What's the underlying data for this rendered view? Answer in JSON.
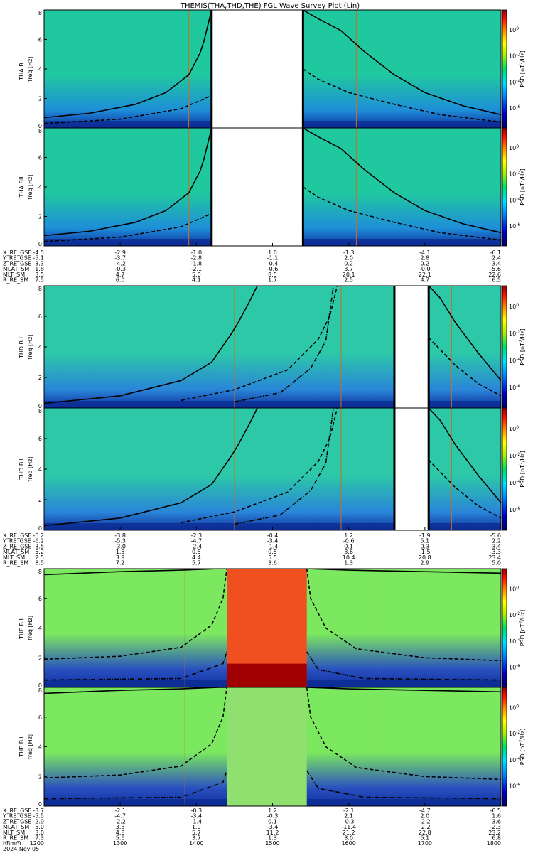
{
  "title": "THEMIS(THA,THD,THE) FGL Wave Survey Plot (Lin)",
  "cbar_label_parts": [
    "PSD [nT",
    "2",
    "/Hz]"
  ],
  "cbar_ticks": [
    {
      "label": "10",
      "exp": "0"
    },
    {
      "label": "10",
      "exp": "-2"
    },
    {
      "label": "10",
      "exp": "-4"
    },
    {
      "label": "10",
      "exp": "-6"
    }
  ],
  "freq_unit_label": "freq [Hz]",
  "chart_data": [
    {
      "type": "heatmap",
      "probe": "THA",
      "panels": [
        {
          "name": "THA B.L",
          "ylabel": "THA B.L"
        },
        {
          "name": "THA Bll",
          "ylabel": "THA Bll"
        }
      ],
      "yticks": [
        "0",
        "2",
        "4",
        "6",
        "8"
      ],
      "ylim": [
        0,
        8
      ],
      "xlim": [
        1200,
        1800
      ],
      "data_gaps": [
        [
          1420,
          1540
        ]
      ],
      "boundaries": [
        1390,
        1610
      ],
      "fce_curve": {
        "t": [
          1200,
          1260,
          1320,
          1360,
          1390,
          1405,
          1410,
          1420
        ],
        "f": [
          0.7,
          1.0,
          1.6,
          2.4,
          3.6,
          5.1,
          5.9,
          8
        ]
      },
      "fce_curve_after": {
        "t": [
          1540,
          1560,
          1590,
          1620,
          1660,
          1700,
          1750,
          1800
        ],
        "f": [
          8,
          7.4,
          6.6,
          5.2,
          3.6,
          2.4,
          1.5,
          0.9
        ]
      },
      "dash_curve": {
        "t": [
          1200,
          1300,
          1380,
          1420
        ],
        "f": [
          0.3,
          0.6,
          1.3,
          2.2
        ]
      },
      "dash_curve_after": {
        "t": [
          1540,
          1560,
          1600,
          1660,
          1720,
          1800
        ],
        "f": [
          4.0,
          3.3,
          2.4,
          1.6,
          0.9,
          0.4
        ]
      },
      "ephem": {
        "labels": [
          "X_RE_GSE",
          "Y_RE_GSE",
          "Z_RE_GSE",
          "MLAT_SM",
          "MLT_SM",
          "R_RE_SM"
        ],
        "columns": [
          [
            "-4.5",
            "-2.9",
            "-1.0",
            "1.0",
            "-1.3",
            "-4.1",
            "-6.1"
          ],
          [
            "-5.1",
            "-3.7",
            "-2.8",
            "-1.1",
            "2.0",
            "2.8",
            "2.4"
          ],
          [
            "-3.3",
            "-4.2",
            "-1.8",
            "-0.4",
            "0.2",
            "0.2",
            "-3.4"
          ],
          [
            "1.8",
            "-0.3",
            "-2.1",
            "-0.6",
            "3.7",
            "-0.0",
            "-5.6"
          ],
          [
            "3.5",
            "4.7",
            "5.0",
            "8.5",
            "20.1",
            "22.1",
            "22.6"
          ],
          [
            "7.5",
            "6.0",
            "4.1",
            "1.7",
            "2.5",
            "4.7",
            "6.5"
          ]
        ]
      }
    },
    {
      "type": "heatmap",
      "probe": "THD",
      "panels": [
        {
          "name": "THD B.L",
          "ylabel": "THD B.L"
        },
        {
          "name": "THD Bll",
          "ylabel": "THD Bll"
        }
      ],
      "yticks": [
        "0",
        "2",
        "4",
        "6",
        "8"
      ],
      "ylim": [
        0,
        8
      ],
      "xlim": [
        1200,
        1800
      ],
      "data_gaps": [
        [
          1660,
          1705
        ]
      ],
      "boundaries": [
        1450,
        1590,
        1735
      ],
      "fce_curve": {
        "t": [
          1200,
          1300,
          1380,
          1420,
          1445,
          1455,
          1470,
          1480
        ],
        "f": [
          0.3,
          0.8,
          1.8,
          3.0,
          4.8,
          5.6,
          7.0,
          8
        ]
      },
      "fce_curve_after": {
        "t": [
          1705,
          1720,
          1740,
          1770,
          1800
        ],
        "f": [
          8,
          7.2,
          5.6,
          3.6,
          1.8
        ]
      },
      "dash_curve": {
        "t": [
          1380,
          1450,
          1520,
          1560,
          1575,
          1585
        ],
        "f": [
          0.5,
          1.2,
          2.5,
          4.5,
          6.0,
          8
        ]
      },
      "dash_curve_after": {
        "t": [
          1705,
          1740,
          1770,
          1800
        ],
        "f": [
          4.6,
          2.8,
          1.6,
          0.8
        ]
      },
      "dashdot_curve": {
        "t": [
          1450,
          1510,
          1550,
          1570,
          1580
        ],
        "f": [
          0.4,
          1.0,
          2.6,
          4.4,
          8
        ]
      },
      "ephem": {
        "labels": [
          "X_RE_GSE",
          "Y_RE_GSE",
          "Z_RE_GSE",
          "MLAT_SM",
          "MLT_SM",
          "R_RE_SM"
        ],
        "columns": [
          [
            "-6.2",
            "-3.8",
            "-2.3",
            "-0.4",
            "1.2",
            "-1.9",
            "-5.6"
          ],
          [
            "-6.2",
            "-5.3",
            "-4.7",
            "-3.4",
            "-0.6",
            "5.1",
            "2.2"
          ],
          [
            "-3.5",
            "-3.0",
            "-2.4",
            "-1.4",
            "0.1",
            "0.3",
            "-3.4"
          ],
          [
            "5.2",
            "1.5",
            "0.5",
            "0.5",
            "3.6",
            "-1.5",
            "-3.3"
          ],
          [
            "2.5",
            "3.9",
            "4.4",
            "5.5",
            "10.4",
            "20.8",
            "23.4"
          ],
          [
            "8.5",
            "7.2",
            "5.7",
            "3.6",
            "1.3",
            "2.9",
            "5.0"
          ]
        ]
      }
    },
    {
      "type": "heatmap",
      "probe": "THE",
      "panels": [
        {
          "name": "THE B.L",
          "ylabel": "THE B.L"
        },
        {
          "name": "THE Bll",
          "ylabel": "THE Bll"
        }
      ],
      "yticks": [
        "0",
        "2",
        "4",
        "6",
        "8"
      ],
      "ylim": [
        0,
        8
      ],
      "xlim": [
        1200,
        1800
      ],
      "high_power_interval": [
        1440,
        1545
      ],
      "boundaries": [
        1385,
        1640
      ],
      "fce_curve": {
        "t": [
          1200,
          1300,
          1380,
          1430,
          1440
        ],
        "f": [
          7.6,
          7.8,
          7.9,
          8,
          8
        ]
      },
      "fce_curve_after": {
        "t": [
          1545,
          1600,
          1700,
          1800
        ],
        "f": [
          8,
          7.9,
          7.8,
          7.7
        ]
      },
      "dash_curve": {
        "t": [
          1200,
          1300,
          1380,
          1420,
          1435,
          1440
        ],
        "f": [
          1.9,
          2.1,
          2.7,
          4.2,
          6.0,
          8
        ]
      },
      "dash_curve_after": {
        "t": [
          1545,
          1550,
          1570,
          1610,
          1700,
          1800
        ],
        "f": [
          8,
          6.0,
          4.0,
          2.6,
          2.0,
          1.8
        ]
      },
      "dashdot_curve": {
        "t": [
          1200,
          1380,
          1435,
          1440
        ],
        "f": [
          0.5,
          0.6,
          1.6,
          2.4
        ]
      },
      "dashdot_curve_after": {
        "t": [
          1545,
          1560,
          1620,
          1800
        ],
        "f": [
          2.4,
          1.2,
          0.6,
          0.5
        ]
      },
      "ephem": {
        "labels": [
          "X_RE_GSE",
          "Y_RE_GSE",
          "Z_RE_GSE",
          "MLAT_SM",
          "MLT_SM",
          "R_RE_SM",
          "hhmm"
        ],
        "columns": [
          [
            "-3.7",
            "-2.1",
            "-0.3",
            "1.2",
            "-2.1",
            "-4.7",
            "-6.5"
          ],
          [
            "-5.5",
            "-4.7",
            "-3.4",
            "-0.3",
            "2.1",
            "2.0",
            "1.6"
          ],
          [
            "-2.9",
            "-2.2",
            "-1.4",
            "0.1",
            "-0.3",
            "-2.2",
            "-3.6"
          ],
          [
            "5.0",
            "3.3",
            "1.9",
            "-3.4",
            "-11.4",
            "-2.2",
            "-2.3"
          ],
          [
            "3.0",
            "4.8",
            "5.7",
            "11.2",
            "21.2",
            "22.8",
            "23.2"
          ],
          [
            "7.3",
            "5.6",
            "3.7",
            "1.3",
            "3.0",
            "5.1",
            "6.8"
          ],
          [
            "1200",
            "1300",
            "1400",
            "1500",
            "1600",
            "1700",
            "1800"
          ]
        ]
      }
    }
  ],
  "date_label": "2024 Nov 05"
}
